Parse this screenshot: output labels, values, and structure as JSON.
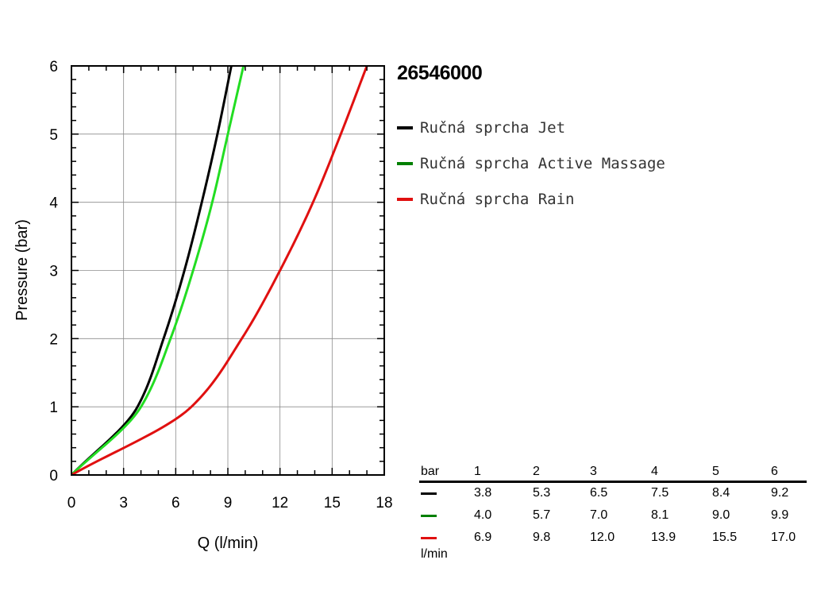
{
  "title": "26546000",
  "chart_data": {
    "type": "line",
    "xlabel": "Q (l/min)",
    "ylabel": "Pressure (bar)",
    "xlim": [
      0,
      18
    ],
    "ylim": [
      0,
      6
    ],
    "xticks": [
      "0",
      "3",
      "6",
      "9",
      "12",
      "15",
      "18"
    ],
    "yticks": [
      "0",
      "1",
      "2",
      "3",
      "4",
      "5",
      "6"
    ],
    "grid": true,
    "legend_position": "right",
    "series": [
      {
        "name": "Ručná sprcha Jet",
        "color": "#000000",
        "x": [
          0,
          3.8,
          5.3,
          6.5,
          7.5,
          8.4,
          9.2
        ],
        "y": [
          0,
          1,
          2,
          3,
          4,
          5,
          6
        ]
      },
      {
        "name": "Ručná sprcha Active Massage",
        "color": "#22dd22",
        "x": [
          0,
          4.0,
          5.7,
          7.0,
          8.1,
          9.0,
          9.9
        ],
        "y": [
          0,
          1,
          2,
          3,
          4,
          5,
          6
        ]
      },
      {
        "name": "Ručná sprcha Rain",
        "color": "#e01010",
        "x": [
          0,
          6.9,
          9.8,
          12.0,
          13.9,
          15.5,
          17.0
        ],
        "y": [
          0,
          1,
          2,
          3,
          4,
          5,
          6
        ]
      }
    ]
  },
  "table": {
    "row_label": "bar",
    "unit_label": "l/min",
    "headers": [
      "1",
      "2",
      "3",
      "4",
      "5",
      "6"
    ],
    "rows": [
      {
        "color": "#000000",
        "values": [
          "3.8",
          "5.3",
          "6.5",
          "7.5",
          "8.4",
          "9.2"
        ]
      },
      {
        "color": "#008000",
        "values": [
          "4.0",
          "5.7",
          "7.0",
          "8.1",
          "9.0",
          "9.9"
        ]
      },
      {
        "color": "#e01010",
        "values": [
          "6.9",
          "9.8",
          "12.0",
          "13.9",
          "15.5",
          "17.0"
        ]
      }
    ]
  }
}
